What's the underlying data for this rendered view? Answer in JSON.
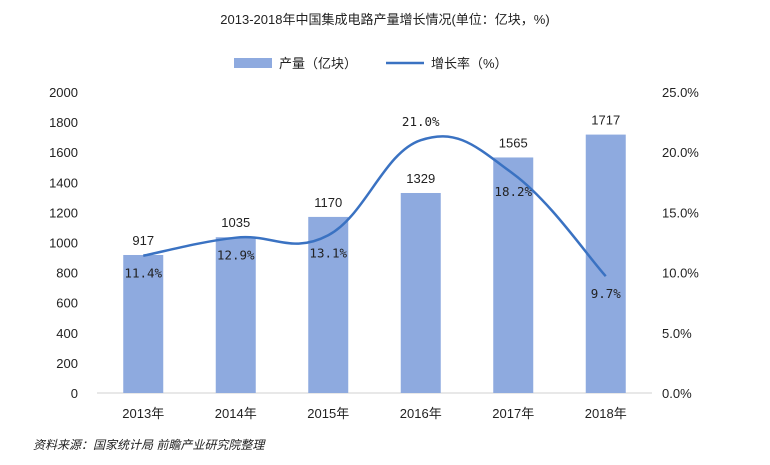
{
  "chart_data": {
    "type": "bar+line",
    "title": "2013-2018年中国集成电路产量增长情况(单位：亿块，%)",
    "categories": [
      "2013年",
      "2014年",
      "2015年",
      "2016年",
      "2017年",
      "2018年"
    ],
    "series": [
      {
        "name": "产量（亿块）",
        "type": "bar",
        "axis": "left",
        "values": [
          917,
          1035,
          1170,
          1329,
          1565,
          1717
        ],
        "labels": [
          "917",
          "1035",
          "1170",
          "1329",
          "1565",
          "1717"
        ],
        "color": "#8eaadf"
      },
      {
        "name": "增长率（%）",
        "type": "line",
        "axis": "right",
        "values": [
          11.4,
          12.9,
          13.1,
          21.0,
          18.2,
          9.7
        ],
        "labels": [
          "11.4%",
          "12.9%",
          "13.1%",
          "21.0%",
          "18.2%",
          "9.7%"
        ],
        "color": "#3a72c2"
      }
    ],
    "y_left": {
      "min": 0,
      "max": 2000,
      "ticks": [
        "0",
        "200",
        "400",
        "600",
        "800",
        "1000",
        "1200",
        "1400",
        "1600",
        "1800",
        "2000"
      ]
    },
    "y_right": {
      "min": 0,
      "max": 25,
      "ticks": [
        "0.0%",
        "5.0%",
        "10.0%",
        "15.0%",
        "20.0%",
        "25.0%"
      ]
    },
    "legend_position": "top-center",
    "grid": false
  },
  "source": "资料来源：国家统计局 前瞻产业研究院整理",
  "colors": {
    "bar": "#8eaadf",
    "line": "#3a72c2",
    "axis": "#d0d0d0",
    "text": "#222222"
  }
}
